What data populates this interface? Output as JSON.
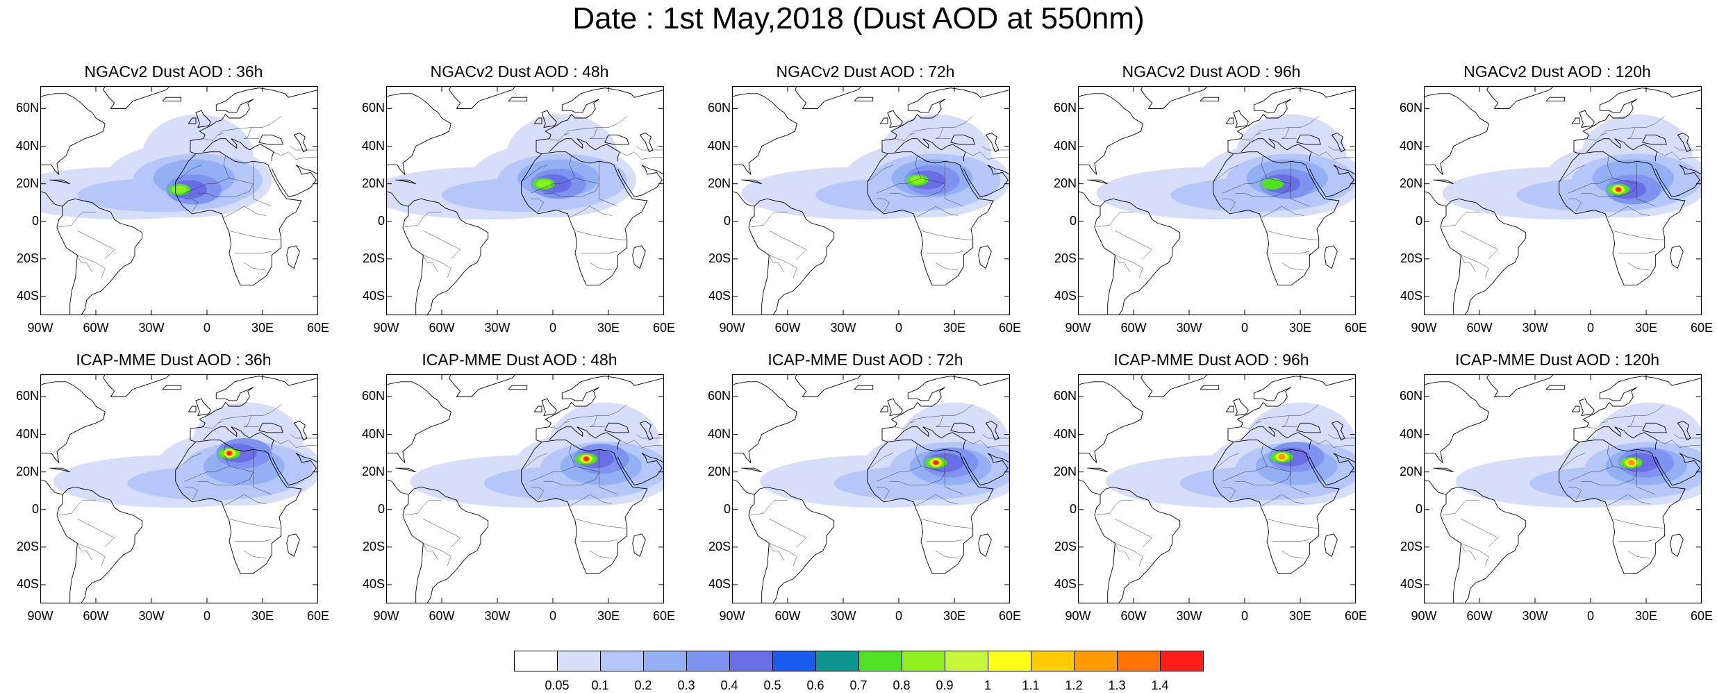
{
  "title": "Date : 1st May,2018 (Dust AOD at 550nm)",
  "lat_labels": [
    "60N",
    "40N",
    "20N",
    "0",
    "20S",
    "40S"
  ],
  "lon_labels": [
    "90W",
    "60W",
    "30W",
    "0",
    "30E",
    "60E"
  ],
  "panels": [
    {
      "row": 0,
      "col": 0,
      "title": "NGACv2 Dust AOD : 36h",
      "model": "NGACv2",
      "lead": "36h",
      "peak_aod": 0.9,
      "plume_lon": -15,
      "plume_lat": 17
    },
    {
      "row": 0,
      "col": 1,
      "title": "NGACv2 Dust AOD : 48h",
      "model": "NGACv2",
      "lead": "48h",
      "peak_aod": 0.9,
      "plume_lon": -5,
      "plume_lat": 20
    },
    {
      "row": 0,
      "col": 2,
      "title": "NGACv2 Dust AOD : 72h",
      "model": "NGACv2",
      "lead": "72h",
      "peak_aod": 0.9,
      "plume_lon": 10,
      "plume_lat": 22
    },
    {
      "row": 0,
      "col": 3,
      "title": "NGACv2 Dust AOD : 96h",
      "model": "NGACv2",
      "lead": "96h",
      "peak_aod": 0.8,
      "plume_lon": 15,
      "plume_lat": 20
    },
    {
      "row": 0,
      "col": 4,
      "title": "NGACv2 Dust AOD : 120h",
      "model": "NGACv2",
      "lead": "120h",
      "peak_aod": 1.4,
      "plume_lon": 15,
      "plume_lat": 17
    },
    {
      "row": 1,
      "col": 0,
      "title": "ICAP-MME Dust AOD : 36h",
      "model": "ICAP-MME",
      "lead": "36h",
      "peak_aod": 1.4,
      "plume_lon": 12,
      "plume_lat": 30
    },
    {
      "row": 1,
      "col": 1,
      "title": "ICAP-MME Dust AOD : 48h",
      "model": "ICAP-MME",
      "lead": "48h",
      "peak_aod": 1.4,
      "plume_lon": 18,
      "plume_lat": 27
    },
    {
      "row": 1,
      "col": 2,
      "title": "ICAP-MME Dust AOD : 72h",
      "model": "ICAP-MME",
      "lead": "72h",
      "peak_aod": 1.4,
      "plume_lon": 20,
      "plume_lat": 25
    },
    {
      "row": 1,
      "col": 3,
      "title": "ICAP-MME Dust AOD : 96h",
      "model": "ICAP-MME",
      "lead": "96h",
      "peak_aod": 1.3,
      "plume_lon": 20,
      "plume_lat": 28
    },
    {
      "row": 1,
      "col": 4,
      "title": "ICAP-MME Dust AOD : 120h",
      "model": "ICAP-MME",
      "lead": "120h",
      "peak_aod": 1.3,
      "plume_lon": 22,
      "plume_lat": 25
    }
  ],
  "colorbar": {
    "labels": [
      "0.05",
      "0.1",
      "0.2",
      "0.3",
      "0.4",
      "0.5",
      "0.6",
      "0.7",
      "0.8",
      "0.9",
      "1",
      "1.1",
      "1.2",
      "1.3",
      "1.4"
    ],
    "colors": [
      "#ffffff",
      "#d6defa",
      "#b5c6f8",
      "#94b0f5",
      "#7e94f0",
      "#6a6ee6",
      "#1a5bef",
      "#0d9691",
      "#4fe324",
      "#8ef01c",
      "#c8f73a",
      "#ffff1a",
      "#ffcc00",
      "#ff9a00",
      "#ff7400",
      "#ff1f1a"
    ]
  }
}
